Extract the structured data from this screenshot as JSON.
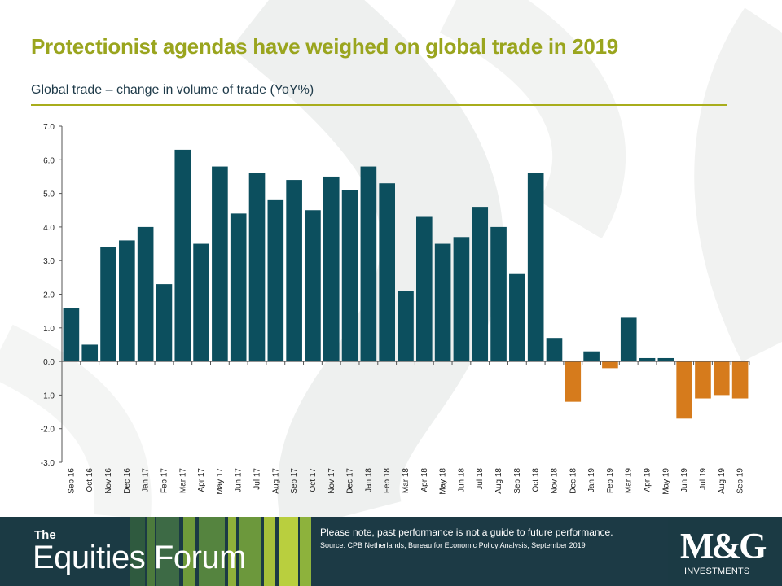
{
  "slide": {
    "title": "Protectionist agendas have weighed on global trade in 2019"
  },
  "footer": {
    "brand_small": "The",
    "brand_big": "Equities Forum",
    "disclaimer": "Please note, past performance  is not a guide to future performance.",
    "source": "Source: CPB Netherlands, Bureau for Economic Policy Analysis, September 2019",
    "logo_text": "M&G",
    "logo_sub": "INVESTMENTS"
  },
  "colors": {
    "title": "#9aa51e",
    "positive_bar": "#0c4f5e",
    "negative_bar": "#d67b1c",
    "footer_bg": "#1c3a45"
  },
  "chart_data": {
    "type": "bar",
    "subtitle": "Global trade – change in volume of trade (YoY%)",
    "categories": [
      "Sep 16",
      "Oct 16",
      "Nov 16",
      "Dec 16",
      "Jan 17",
      "Feb 17",
      "Mar 17",
      "Apr 17",
      "May 17",
      "Jun 17",
      "Jul 17",
      "Aug 17",
      "Sep 17",
      "Oct 17",
      "Nov 17",
      "Dec 17",
      "Jan 18",
      "Feb 18",
      "Mar 18",
      "Apr 18",
      "May 18",
      "Jun 18",
      "Jul 18",
      "Aug 18",
      "Sep 18",
      "Oct 18",
      "Nov 18",
      "Dec 18",
      "Jan 19",
      "Feb 19",
      "Mar 19",
      "Apr 19",
      "May 19",
      "Jun 19",
      "Jul 19",
      "Aug 19",
      "Sep 19"
    ],
    "values": [
      1.6,
      0.5,
      3.4,
      3.6,
      4.0,
      2.3,
      6.3,
      3.5,
      5.8,
      4.4,
      5.6,
      4.8,
      5.4,
      4.5,
      5.5,
      5.1,
      5.8,
      5.3,
      2.1,
      4.3,
      3.5,
      3.7,
      4.6,
      4.0,
      2.6,
      5.6,
      0.7,
      -1.2,
      0.3,
      -0.2,
      1.3,
      0.1,
      0.1,
      -1.7,
      -1.1,
      -1.0,
      -1.1
    ],
    "ylim": [
      -3.0,
      7.0
    ],
    "yticks": [
      "7.0",
      "6.0",
      "5.0",
      "4.0",
      "3.0",
      "2.0",
      "1.0",
      "0.0",
      "-1.0",
      "-2.0",
      "-3.0"
    ],
    "grid": false,
    "legend": "none"
  }
}
